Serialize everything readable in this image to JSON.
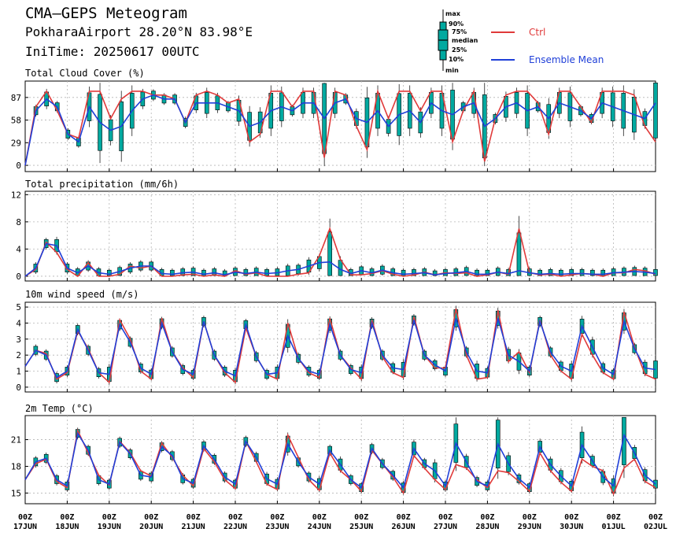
{
  "header": {
    "title": "CMA–GEPS Meteogram",
    "location": "PokharaAirport 28.20°N 83.98°E",
    "init": "IniTime: 20250617 00UTC"
  },
  "legend": {
    "box_labels": [
      "max",
      "90%",
      "75%",
      "median",
      "25%",
      "10%",
      "min"
    ],
    "ctrl_label": "Ctrl",
    "mean_label": "Ensemble Mean",
    "colors": {
      "box": "#00a9a0",
      "ctrl": "#e03a3a",
      "mean": "#1f3fd8"
    }
  },
  "x_ticks": [
    {
      "hour": "00Z",
      "date": "17JUN"
    },
    {
      "hour": "00Z",
      "date": "18JUN"
    },
    {
      "hour": "00Z",
      "date": "19JUN"
    },
    {
      "hour": "00Z",
      "date": "20JUN"
    },
    {
      "hour": "00Z",
      "date": "21JUN"
    },
    {
      "hour": "00Z",
      "date": "22JUN"
    },
    {
      "hour": "00Z",
      "date": "23JUN"
    },
    {
      "hour": "00Z",
      "date": "24JUN"
    },
    {
      "hour": "00Z",
      "date": "25JUN"
    },
    {
      "hour": "00Z",
      "date": "26JUN"
    },
    {
      "hour": "00Z",
      "date": "27JUN"
    },
    {
      "hour": "00Z",
      "date": "28JUN"
    },
    {
      "hour": "00Z",
      "date": "29JUN"
    },
    {
      "hour": "00Z",
      "date": "30JUN"
    },
    {
      "hour": "00Z",
      "date": "01JUL"
    },
    {
      "hour": "00Z",
      "date": "02JUL"
    }
  ],
  "chart_data": [
    {
      "type": "line",
      "title": "Total Cloud Cover (%)",
      "ylim": [
        -8,
        108
      ],
      "yticks": [
        0,
        29,
        58,
        87
      ],
      "x_step_hours": 6,
      "x_start": "20250617 00UTC",
      "grid": true,
      "series": [
        {
          "name": "Ctrl",
          "values": [
            0,
            75,
            95,
            70,
            40,
            35,
            95,
            95,
            60,
            85,
            95,
            95,
            90,
            90,
            85,
            55,
            90,
            95,
            90,
            80,
            85,
            30,
            40,
            95,
            95,
            75,
            95,
            95,
            10,
            95,
            90,
            50,
            20,
            95,
            60,
            95,
            95,
            70,
            95,
            95,
            30,
            70,
            95,
            5,
            60,
            90,
            95,
            95,
            80,
            40,
            95,
            95,
            75,
            55,
            95,
            95,
            95,
            90,
            50,
            30
          ]
        },
        {
          "name": "Ensemble Mean",
          "values": [
            0,
            70,
            85,
            75,
            40,
            30,
            75,
            55,
            45,
            50,
            70,
            85,
            90,
            85,
            85,
            55,
            80,
            80,
            80,
            75,
            70,
            50,
            55,
            70,
            75,
            70,
            80,
            80,
            60,
            80,
            85,
            60,
            55,
            70,
            50,
            65,
            70,
            55,
            80,
            70,
            65,
            75,
            80,
            50,
            60,
            75,
            80,
            70,
            75,
            60,
            80,
            75,
            70,
            60,
            80,
            75,
            70,
            65,
            60,
            80
          ]
        }
      ]
    },
    {
      "type": "line",
      "title": "Total precipitation (mm/6h)",
      "ylim": [
        -0.7,
        12.5
      ],
      "yticks": [
        0,
        4,
        8,
        12
      ],
      "x_step_hours": 6,
      "x_start": "20250617 00UTC",
      "grid": true,
      "series": [
        {
          "name": "Ctrl",
          "values": [
            0,
            1.0,
            5.0,
            3.5,
            1.0,
            0,
            2.0,
            0,
            0,
            0.3,
            1.5,
            1.2,
            1.5,
            0,
            0,
            0.2,
            0.3,
            0,
            0.2,
            0,
            0.8,
            0.3,
            0.5,
            0,
            0,
            0,
            0.3,
            0.5,
            3.0,
            7.0,
            2.5,
            0.2,
            0.2,
            0.4,
            0.8,
            0.3,
            0,
            0.2,
            0.6,
            0.2,
            0.5,
            0.4,
            0.5,
            0,
            0.2,
            0.6,
            0.3,
            7.0,
            0.5,
            0.2,
            0.3,
            0,
            0.2,
            0.4,
            0.3,
            0,
            0.5,
            0.5,
            1.0,
            0.8,
            0.3
          ]
        },
        {
          "name": "Ensemble Mean",
          "values": [
            0,
            1.2,
            4.8,
            4.5,
            1.2,
            0.5,
            1.5,
            0.5,
            0.3,
            0.7,
            1.2,
            1.5,
            1.5,
            0.4,
            0.3,
            0.5,
            0.6,
            0.3,
            0.5,
            0.2,
            0.6,
            0.4,
            0.6,
            0.4,
            0.5,
            0.8,
            1.0,
            1.5,
            2.0,
            2.1,
            1.0,
            0.4,
            0.8,
            0.5,
            0.9,
            0.5,
            0.3,
            0.4,
            0.5,
            0.2,
            0.4,
            0.5,
            0.7,
            0.3,
            0.3,
            0.6,
            0.4,
            0.8,
            0.5,
            0.3,
            0.4,
            0.3,
            0.4,
            0.4,
            0.3,
            0.3,
            0.5,
            0.6,
            0.7,
            0.6,
            0.4
          ]
        }
      ]
    },
    {
      "type": "line",
      "title": "10m wind speed (m/s)",
      "ylim": [
        -0.3,
        5.3
      ],
      "yticks": [
        0,
        1,
        2,
        3,
        4,
        5
      ],
      "x_step_hours": 6,
      "x_start": "20250617 00UTC",
      "grid": true,
      "series": [
        {
          "name": "Ctrl",
          "values": [
            1.3,
            2.3,
            2.1,
            0.5,
            0.9,
            3.5,
            2.4,
            0.9,
            0.3,
            4.2,
            3.0,
            1.0,
            0.5,
            4.3,
            2.2,
            1.2,
            0.6,
            4.1,
            2.0,
            0.9,
            0.3,
            3.7,
            1.9,
            0.8,
            0.5,
            4.0,
            1.8,
            0.9,
            0.6,
            4.3,
            2.0,
            1.2,
            0.5,
            4.2,
            1.9,
            0.9,
            0.6,
            4.4,
            2.0,
            1.2,
            1.2,
            4.9,
            2.0,
            0.5,
            0.6,
            4.8,
            1.6,
            2.2,
            0.9,
            4.2,
            2.0,
            1.0,
            0.5,
            3.3,
            2.0,
            0.9,
            0.5,
            4.7,
            2.5,
            0.8,
            0.5
          ]
        },
        {
          "name": "Ensemble Mean",
          "values": [
            1.3,
            2.3,
            2.0,
            0.6,
            1.0,
            3.6,
            2.3,
            0.9,
            0.8,
            3.9,
            2.8,
            1.2,
            0.8,
            4.0,
            2.2,
            1.1,
            0.8,
            4.1,
            2.0,
            1.0,
            0.7,
            3.9,
            1.9,
            0.8,
            0.9,
            3.2,
            1.8,
            1.0,
            0.8,
            3.9,
            2.0,
            1.1,
            0.9,
            4.0,
            2.0,
            1.2,
            1.1,
            4.2,
            2.0,
            1.4,
            1.0,
            4.3,
            2.2,
            1.0,
            0.9,
            4.3,
            2.0,
            1.6,
            1.0,
            4.1,
            2.2,
            1.3,
            1.0,
            3.8,
            2.5,
            1.2,
            0.8,
            4.1,
            2.4,
            1.2,
            1.1
          ]
        }
      ]
    },
    {
      "type": "line",
      "title": "2m Temp (°C)",
      "ylim": [
        13.8,
        23.7
      ],
      "yticks": [
        15,
        18,
        21
      ],
      "x_step_hours": 6,
      "x_start": "20250617 00UTC",
      "grid": true,
      "series": [
        {
          "name": "Ctrl",
          "values": [
            16.5,
            18.3,
            18.8,
            16.3,
            15.6,
            22,
            19.5,
            17,
            15.9,
            20.8,
            19.5,
            17.5,
            16.9,
            20.6,
            19,
            17,
            15.8,
            20,
            18.5,
            16.5,
            15.5,
            20.8,
            18.5,
            16,
            15.4,
            21.5,
            19,
            16.5,
            15.3,
            19.5,
            17.5,
            16.5,
            15.2,
            19.8,
            18.3,
            16.8,
            15,
            19.2,
            17.8,
            16.5,
            15.4,
            18.2,
            17.8,
            16.5,
            15.6,
            17.5,
            17.3,
            16.3,
            15.2,
            19.5,
            17.5,
            16.2,
            15.2,
            18.8,
            18,
            17.5,
            14.9,
            17.8,
            18.8,
            16.3,
            15.6
          ]
        },
        {
          "name": "Ensemble Mean",
          "values": [
            16.5,
            18.5,
            18.9,
            16.5,
            15.8,
            21.7,
            19.8,
            16.5,
            16.0,
            20.7,
            19.4,
            17.0,
            16.8,
            20.2,
            19.2,
            16.6,
            16.1,
            20.3,
            18.8,
            16.8,
            16.0,
            20.8,
            19.0,
            16.6,
            16.0,
            20.5,
            18.5,
            16.8,
            16.0,
            19.8,
            18.2,
            16.5,
            15.6,
            20.0,
            18.3,
            17.0,
            15.6,
            20.0,
            18.3,
            17.5,
            15.8,
            20.6,
            18.5,
            16.3,
            15.8,
            20.5,
            18.3,
            16.6,
            15.6,
            20.2,
            18.2,
            16.9,
            15.8,
            20.4,
            18.6,
            16.8,
            15.8,
            21.5,
            19.5,
            17.0,
            16.0
          ]
        }
      ]
    }
  ]
}
